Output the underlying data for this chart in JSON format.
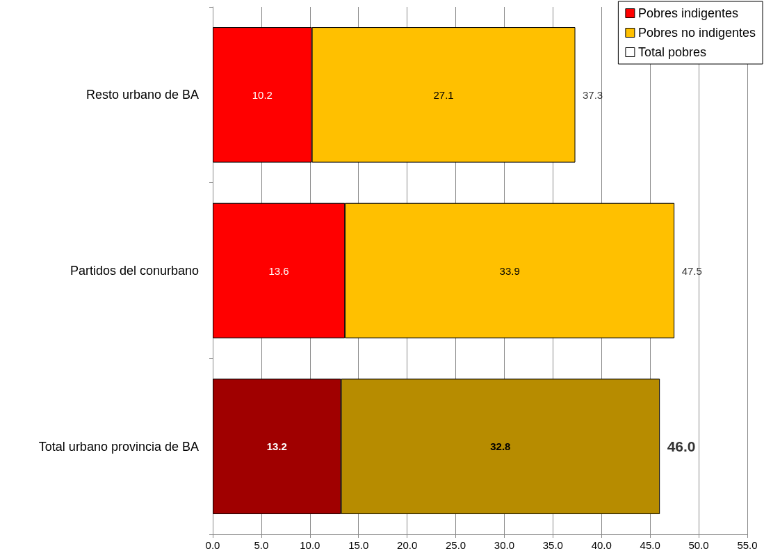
{
  "chart_data": {
    "type": "bar",
    "orientation": "horizontal",
    "stacked": true,
    "categories": [
      "Resto urbano de BA",
      "Partidos del conurbano",
      "Total urbano provincia de BA"
    ],
    "series": [
      {
        "name": "Pobres indigentes",
        "color": "#ff0000",
        "colors": [
          "#ff0000",
          "#ff0000",
          "#a00000"
        ],
        "values": [
          10.2,
          13.6,
          13.2
        ]
      },
      {
        "name": "Pobres no indigentes",
        "color": "#ffc000",
        "colors": [
          "#ffc000",
          "#ffc000",
          "#b78c00"
        ],
        "values": [
          27.1,
          33.9,
          32.8
        ]
      },
      {
        "name": "Total pobres",
        "color": "#ffffff",
        "values": [
          null,
          null,
          null
        ]
      }
    ],
    "totals": [
      "37.3",
      "47.5",
      "46.0"
    ],
    "data_labels": true,
    "xlim": [
      0,
      55
    ],
    "xticks": [
      {
        "value": 0,
        "label": "0.0"
      },
      {
        "value": 5,
        "label": "5.0"
      },
      {
        "value": 10,
        "label": "10.0"
      },
      {
        "value": 15,
        "label": "15.0"
      },
      {
        "value": 20,
        "label": "20.0"
      },
      {
        "value": 25,
        "label": "25.0"
      },
      {
        "value": 30,
        "label": "30.0"
      },
      {
        "value": 35,
        "label": "35.0"
      },
      {
        "value": 40,
        "label": "40.0"
      },
      {
        "value": 45,
        "label": "45.0"
      },
      {
        "value": 50,
        "label": "50.0"
      },
      {
        "value": 55,
        "label": "55.0"
      }
    ],
    "grid": "x",
    "legend": "top right"
  }
}
